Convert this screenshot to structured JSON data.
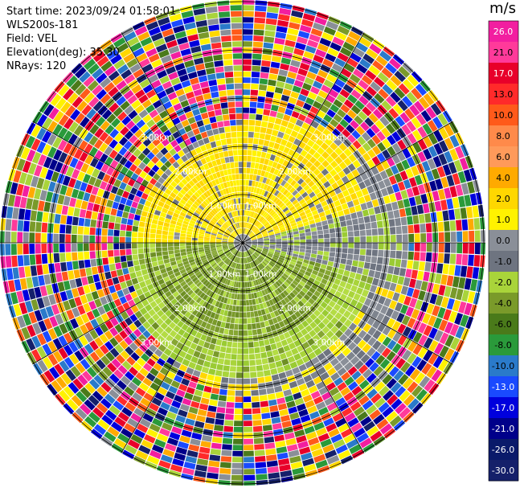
{
  "header": {
    "start_time": "Start time: 2023/09/24 01:58:01",
    "site": "WLS200s-181",
    "field": "Field: VEL",
    "elevation": "Elevation(deg): 35.30",
    "nrays": "NRays: 120"
  },
  "colorbar": {
    "unit": "m/s",
    "ticks": [
      "26.0",
      "21.0",
      "17.0",
      "13.0",
      "10.0",
      "8.0",
      "6.0",
      "4.0",
      "2.0",
      "1.0",
      "0.0",
      "-1.0",
      "-2.0",
      "-4.0",
      "-6.0",
      "-8.0",
      "-10.0",
      "-13.0",
      "-17.0",
      "-21.0",
      "-26.0",
      "-30.0"
    ],
    "colors": [
      "#f21ea0",
      "#ff3a9a",
      "#e8002a",
      "#ff2a2a",
      "#ff5a1a",
      "#ff8a4a",
      "#ff9a5a",
      "#ffaa00",
      "#ffd700",
      "#fff200",
      "#8a8f98",
      "#6e7480",
      "#a9d43a",
      "#7a9a2a",
      "#4a7a1a",
      "#2a9a3a",
      "#2a7aca",
      "#1a4aff",
      "#0000dd",
      "#00008a",
      "#0a1a6a",
      "#15206a"
    ]
  },
  "chart_data": {
    "type": "heatmap",
    "projection": "polar (PPI)",
    "field": "VEL",
    "nrays": 120,
    "range_rings_km": [
      1.0,
      2.0,
      3.0
    ],
    "ring_labels": [
      "1.00km",
      "2.00km",
      "3.00km"
    ],
    "spoke_step_deg": 30,
    "colorbar_range": [
      -30.0,
      26.0
    ]
  }
}
